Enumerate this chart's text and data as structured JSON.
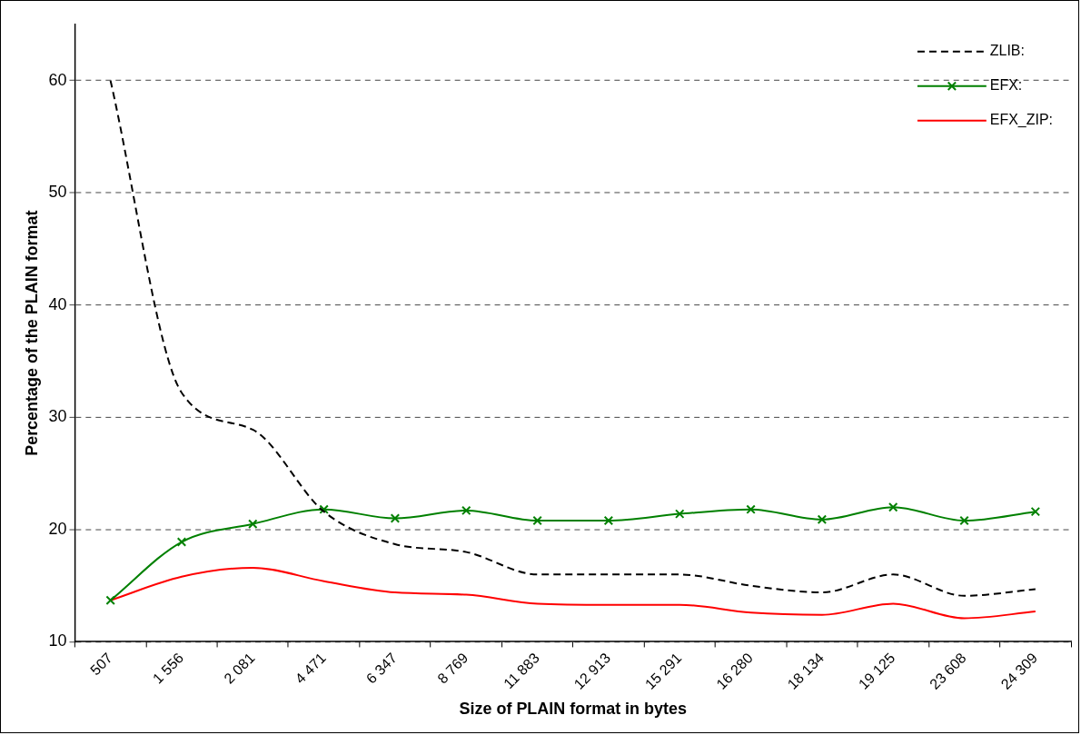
{
  "chart_data": {
    "type": "line",
    "xlabel": "Size of PLAIN format in bytes",
    "ylabel": "Percentage of the PLAIN format",
    "categories": [
      "507",
      "1 556",
      "2 081",
      "4 471",
      "6 347",
      "8 769",
      "11 883",
      "12 913",
      "15 291",
      "16 280",
      "18 134",
      "19 125",
      "23 608",
      "24 309"
    ],
    "series": [
      {
        "name": "ZLIB:",
        "color": "#000000",
        "line_style": "dashed",
        "marker": "none",
        "values": [
          60,
          32.2,
          28.9,
          21.6,
          18.7,
          18.0,
          16.0,
          16.0,
          16.0,
          15.0,
          14.4,
          16.0,
          14.1,
          14.7
        ]
      },
      {
        "name": "EFX:",
        "color": "#008000",
        "line_style": "solid",
        "marker": "cross",
        "values": [
          13.7,
          18.9,
          20.5,
          21.8,
          21.0,
          21.7,
          20.8,
          20.8,
          21.4,
          21.8,
          20.9,
          22.0,
          20.8,
          21.6
        ]
      },
      {
        "name": "EFX_ZIP:",
        "color": "#ff0000",
        "line_style": "solid",
        "marker": "none",
        "values": [
          13.7,
          15.8,
          16.6,
          15.4,
          14.4,
          14.2,
          13.4,
          13.3,
          13.3,
          12.6,
          12.4,
          13.4,
          12.1,
          12.7
        ]
      }
    ],
    "ylim": [
      10,
      65
    ],
    "yticks": [
      10,
      20,
      30,
      40,
      50,
      60
    ],
    "grid": "y",
    "legend": "top right"
  }
}
